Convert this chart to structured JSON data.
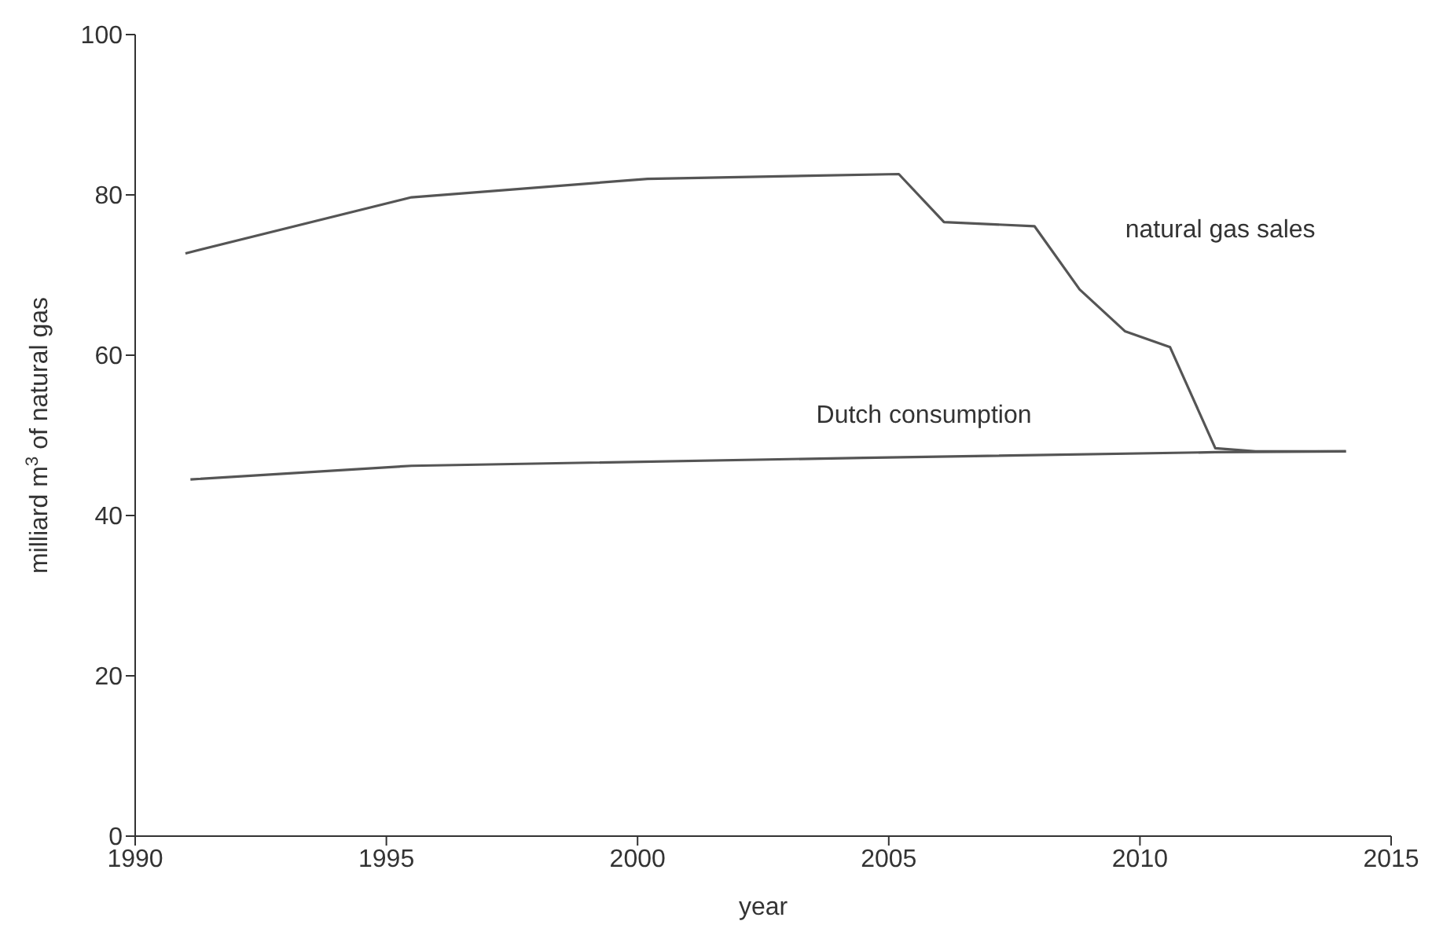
{
  "chart_data": {
    "type": "line",
    "xlabel": "year",
    "ylabel": "milliard m$^{3}$ of natural gas",
    "xlim": [
      1990,
      2015
    ],
    "xticks": [
      1990,
      1995,
      2000,
      2005,
      2010,
      2015
    ],
    "ylim": [
      0,
      100
    ],
    "yticks": [
      0,
      20,
      40,
      60,
      80,
      100
    ],
    "grid": false,
    "legend": false,
    "marker": "none",
    "line_style": "solid",
    "series": [
      {
        "name": "natural gas sales",
        "color": "#555555",
        "x": [
          1991.0,
          1995.5,
          2000.2,
          2005.2,
          2006.1,
          2007.9,
          2008.8,
          2009.7,
          2010.6,
          2011.5,
          2012.3,
          2014.1
        ],
        "values": [
          72.7,
          79.7,
          82.0,
          82.6,
          76.6,
          76.1,
          68.2,
          63.0,
          61.0,
          48.4,
          48.0,
          48.0
        ]
      },
      {
        "name": "Dutch consumption",
        "color": "#555555",
        "x": [
          1991.1,
          1995.5,
          2004.5,
          2011.5,
          2014.1
        ],
        "values": [
          44.5,
          46.2,
          47.2,
          47.9,
          48.0
        ]
      }
    ]
  }
}
